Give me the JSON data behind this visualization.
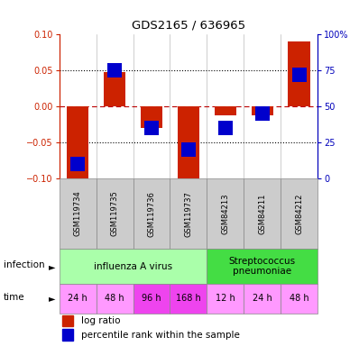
{
  "title": "GDS2165 / 636965",
  "samples": [
    "GSM119734",
    "GSM119735",
    "GSM119736",
    "GSM119737",
    "GSM84213",
    "GSM84211",
    "GSM84212"
  ],
  "log_ratio": [
    -0.102,
    0.048,
    -0.03,
    -0.1,
    -0.012,
    -0.012,
    0.091
  ],
  "percentile_rank": [
    10,
    75,
    35,
    20,
    35,
    45,
    72
  ],
  "ylim_left": [
    -0.1,
    0.1
  ],
  "ylim_right": [
    0,
    100
  ],
  "yticks_left": [
    -0.1,
    -0.05,
    0,
    0.05,
    0.1
  ],
  "yticks_right": [
    0,
    25,
    50,
    75,
    100
  ],
  "ytick_labels_right": [
    "0",
    "25",
    "50",
    "75",
    "100%"
  ],
  "bar_color_red": "#cc2200",
  "bar_color_blue": "#0000cc",
  "bar_width": 0.6,
  "infection_colors": [
    "#aaffaa",
    "#44dd44"
  ],
  "infection_texts": [
    "influenza A virus",
    "Streptococcus\npneumoniae"
  ],
  "time_labels": [
    "24 h",
    "48 h",
    "96 h",
    "168 h",
    "12 h",
    "24 h",
    "48 h"
  ],
  "time_light": "#ff99ff",
  "time_dark": "#ee44ee",
  "time_dark_indices": [
    2,
    3
  ],
  "sample_bg_color": "#cccccc",
  "left_yaxis_color": "#cc2200",
  "right_yaxis_color": "#0000bb",
  "legend_red_label": "log ratio",
  "legend_blue_label": "percentile rank within the sample"
}
